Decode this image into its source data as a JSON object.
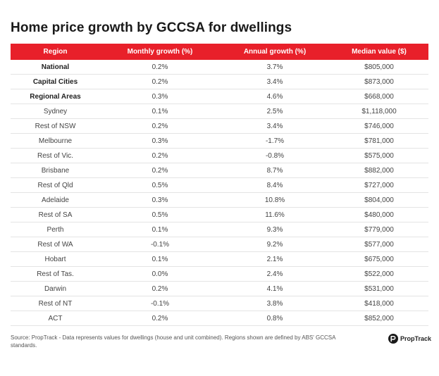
{
  "chart_data": {
    "type": "table",
    "title": "Home price growth by GCCSA for dwellings",
    "columns": [
      "Region",
      "Monthly growth (%)",
      "Annual growth (%)",
      "Median value ($)"
    ],
    "rows": [
      {
        "region": "National",
        "monthly": "0.2%",
        "annual": "3.7%",
        "median": "$805,000",
        "bold": true
      },
      {
        "region": "Capital Cities",
        "monthly": "0.2%",
        "annual": "3.4%",
        "median": "$873,000",
        "bold": true
      },
      {
        "region": "Regional Areas",
        "monthly": "0.3%",
        "annual": "4.6%",
        "median": "$668,000",
        "bold": true
      },
      {
        "region": "Sydney",
        "monthly": "0.1%",
        "annual": "2.5%",
        "median": "$1,118,000",
        "bold": false
      },
      {
        "region": "Rest of NSW",
        "monthly": "0.2%",
        "annual": "3.4%",
        "median": "$746,000",
        "bold": false
      },
      {
        "region": "Melbourne",
        "monthly": "0.3%",
        "annual": "-1.7%",
        "median": "$781,000",
        "bold": false
      },
      {
        "region": "Rest of Vic.",
        "monthly": "0.2%",
        "annual": "-0.8%",
        "median": "$575,000",
        "bold": false
      },
      {
        "region": "Brisbane",
        "monthly": "0.2%",
        "annual": "8.7%",
        "median": "$882,000",
        "bold": false
      },
      {
        "region": "Rest of Qld",
        "monthly": "0.5%",
        "annual": "8.4%",
        "median": "$727,000",
        "bold": false
      },
      {
        "region": "Adelaide",
        "monthly": "0.3%",
        "annual": "10.8%",
        "median": "$804,000",
        "bold": false
      },
      {
        "region": "Rest of SA",
        "monthly": "0.5%",
        "annual": "11.6%",
        "median": "$480,000",
        "bold": false
      },
      {
        "region": "Perth",
        "monthly": "0.1%",
        "annual": "9.3%",
        "median": "$779,000",
        "bold": false
      },
      {
        "region": "Rest of WA",
        "monthly": "-0.1%",
        "annual": "9.2%",
        "median": "$577,000",
        "bold": false
      },
      {
        "region": "Hobart",
        "monthly": "0.1%",
        "annual": "2.1%",
        "median": "$675,000",
        "bold": false
      },
      {
        "region": "Rest of Tas.",
        "monthly": "0.0%",
        "annual": "2.4%",
        "median": "$522,000",
        "bold": false
      },
      {
        "region": "Darwin",
        "monthly": "0.2%",
        "annual": "4.1%",
        "median": "$531,000",
        "bold": false
      },
      {
        "region": "Rest of NT",
        "monthly": "-0.1%",
        "annual": "3.8%",
        "median": "$418,000",
        "bold": false
      },
      {
        "region": "ACT",
        "monthly": "0.2%",
        "annual": "0.8%",
        "median": "$852,000",
        "bold": false
      }
    ]
  },
  "footnote": "Source: PropTrack - Data represents values for dwellings (house and unit combined). Regions shown are defined by ABS' GCCSA standards.",
  "logo": {
    "text": "PropTrack",
    "icon": "proptrack-logo-icon"
  },
  "colors": {
    "header_bg": "#e8202a",
    "header_text": "#ffffff",
    "row_border": "#e4e4e4"
  }
}
